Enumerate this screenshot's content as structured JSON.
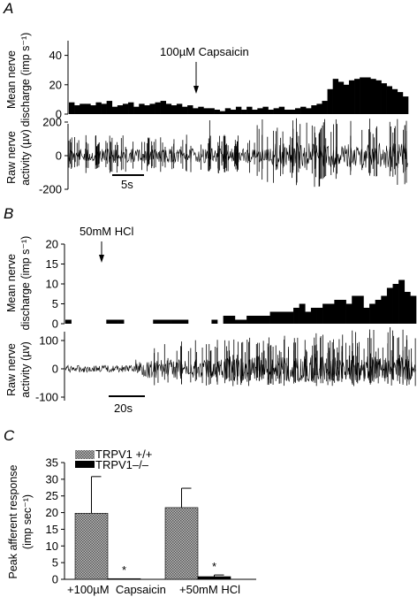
{
  "panels": [
    "A",
    "B",
    "C"
  ],
  "chart_data": [
    {
      "type": "bar",
      "panel": "A",
      "subtype": "histogram-with-raw-trace",
      "ylabel_top": [
        "Mean nerve",
        "discharge (imp s⁻¹)"
      ],
      "ylabel_bottom": [
        "Raw nerve",
        "activity (µv)"
      ],
      "ylim": [
        0,
        50
      ],
      "yticks": [
        "40",
        "20",
        "0"
      ],
      "ytick_values": [
        40,
        20,
        0
      ],
      "raw_yticks": [
        "200",
        "0",
        "-200"
      ],
      "raw_ytick_values": [
        200,
        0,
        -200
      ],
      "raw_ylim": [
        -250,
        250
      ],
      "annotation": "100µM Capsaicin",
      "annotation_bin": 34,
      "scale_bar_label": "5s",
      "values": [
        8,
        6,
        7,
        7,
        6,
        8,
        7,
        9,
        5,
        6,
        7,
        8,
        5,
        7,
        6,
        7,
        8,
        9,
        7,
        6,
        7,
        5,
        6,
        4,
        5,
        4,
        4,
        3,
        2,
        4,
        3,
        5,
        3,
        5,
        3,
        4,
        5,
        3,
        4,
        5,
        3,
        3,
        4,
        5,
        4,
        6,
        7,
        9,
        17,
        24,
        22,
        20,
        23,
        24,
        25,
        25,
        24,
        23,
        21,
        19,
        17,
        15,
        12
      ]
    },
    {
      "type": "bar",
      "panel": "B",
      "subtype": "histogram-with-raw-trace",
      "ylabel_top": [
        "Mean nerve",
        "discharge (imp s⁻¹)"
      ],
      "ylabel_bottom": [
        "Raw nerve",
        "activity (µv)"
      ],
      "ylim": [
        0,
        20
      ],
      "yticks": [
        "20",
        "15",
        "10",
        "5",
        "0"
      ],
      "ytick_values": [
        20,
        15,
        10,
        5,
        0
      ],
      "raw_yticks": [
        "100",
        "0",
        "-100"
      ],
      "raw_ytick_values": [
        100,
        0,
        -100
      ],
      "raw_ylim": [
        -110,
        125
      ],
      "annotation": "50mM HCl",
      "annotation_bin": 7,
      "scale_bar_label": "20s",
      "values": [
        1,
        0,
        0,
        0,
        0,
        0,
        0,
        1,
        1,
        1,
        0,
        0,
        0,
        0,
        0,
        1,
        1,
        1,
        1,
        1,
        1,
        0,
        0,
        0,
        0,
        1,
        0,
        2,
        2,
        1,
        1,
        2,
        2,
        2,
        2,
        3,
        3,
        3,
        3,
        4,
        5,
        3,
        4,
        4,
        5,
        5,
        6,
        6,
        5,
        7,
        7,
        4,
        5,
        6,
        7,
        9,
        10,
        11,
        8,
        7
      ]
    },
    {
      "type": "bar",
      "panel": "C",
      "ylabel": [
        "Peak afferent response",
        "(imp sec⁻¹)"
      ],
      "ylim": [
        0,
        35
      ],
      "yticks": [
        "35",
        "30",
        "25",
        "20",
        "15",
        "10",
        "5",
        "0"
      ],
      "ytick_values": [
        35,
        30,
        25,
        20,
        15,
        10,
        5,
        0
      ],
      "categories": [
        "+100µM  Capsaicin",
        "+50mM HCl"
      ],
      "series": [
        {
          "name": "TRPV1 +/+",
          "color": "#8a8a8a",
          "values": [
            19.8,
            21.5
          ],
          "errors": [
            11.0,
            5.8
          ]
        },
        {
          "name": "TRPV1–/–",
          "color": "#000000",
          "values": [
            0.2,
            0.8
          ],
          "errors": [
            0,
            0.5
          ]
        }
      ],
      "significance": [
        "*",
        "*"
      ],
      "legend": "top-left"
    }
  ]
}
